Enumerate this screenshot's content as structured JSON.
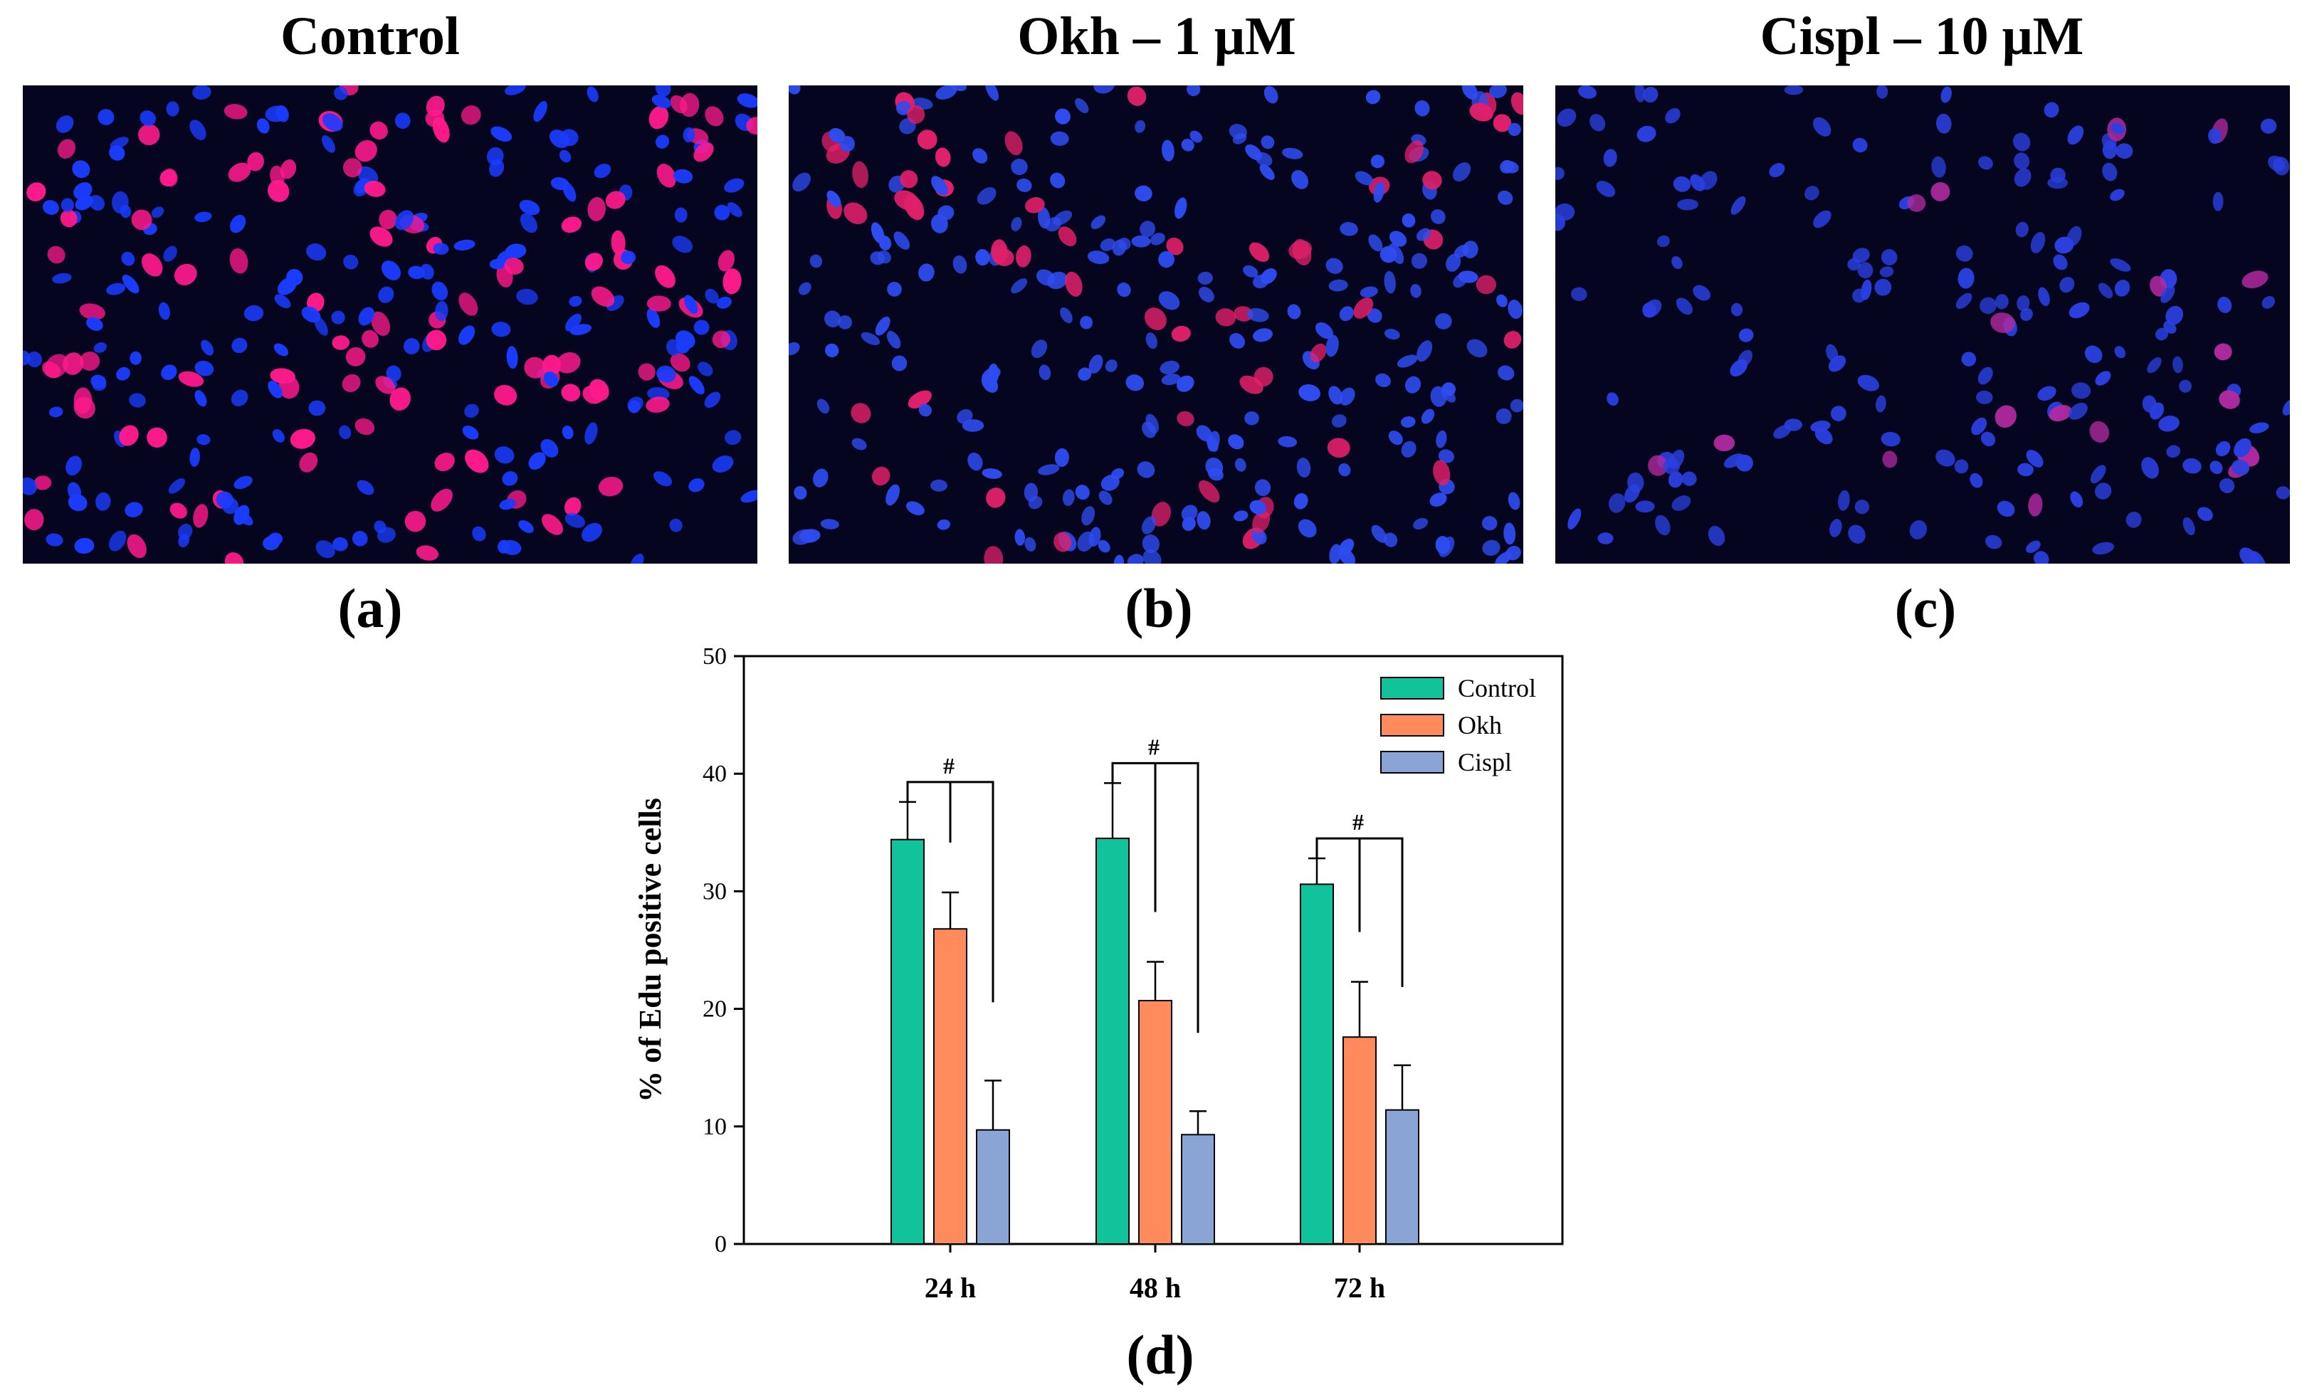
{
  "panels": [
    {
      "title": "Control",
      "label": "(a)",
      "cell_density": "high",
      "stain_colors": {
        "nucleus": "#1a3cff",
        "edu": "#ff1a8c"
      },
      "edu_fraction": 0.34
    },
    {
      "title": "Okh – 1 μM",
      "label": "(b)",
      "cell_density": "high",
      "stain_colors": {
        "nucleus": "#2e4cf0",
        "edu": "#e0206a"
      },
      "edu_fraction": 0.21
    },
    {
      "title": "Cispl – 10 μM",
      "label": "(c)",
      "cell_density": "medium",
      "stain_colors": {
        "nucleus": "#2a40e0",
        "edu": "#b02aa0"
      },
      "edu_fraction": 0.1
    }
  ],
  "chart_label": "(d)",
  "chart_data": {
    "type": "bar",
    "title": "",
    "xlabel": "",
    "ylabel": "% of Edu positive cells",
    "ylim": [
      0,
      50
    ],
    "yticks": [
      0,
      10,
      20,
      30,
      40,
      50
    ],
    "categories": [
      "24 h",
      "48 h",
      "72 h"
    ],
    "series": [
      {
        "name": "Control",
        "color": "#10c39a",
        "values": [
          34.4,
          34.5,
          30.6
        ],
        "errors": [
          3.2,
          4.7,
          2.2
        ]
      },
      {
        "name": "Okh",
        "color": "#ff8a5c",
        "values": [
          26.8,
          20.7,
          17.6
        ],
        "errors": [
          3.1,
          3.3,
          4.7
        ]
      },
      {
        "name": "Cispl",
        "color": "#8aa4d6",
        "values": [
          9.7,
          9.3,
          11.4
        ],
        "errors": [
          4.2,
          2.0,
          3.8
        ]
      }
    ],
    "annotations": [
      {
        "text": "#",
        "category": "24 h"
      },
      {
        "text": "#",
        "category": "48 h"
      },
      {
        "text": "#",
        "category": "72 h"
      }
    ],
    "legend_position": "top-right"
  }
}
